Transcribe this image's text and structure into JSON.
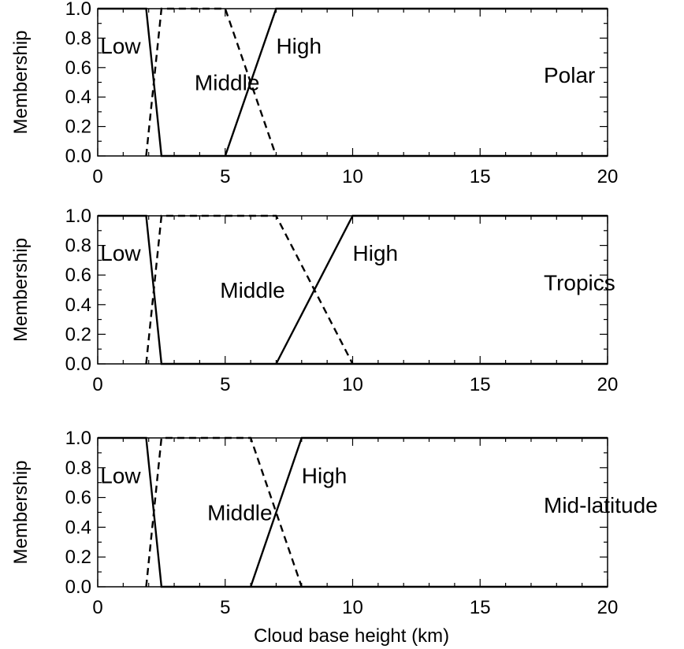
{
  "figure": {
    "xlabel": "Cloud base height (km)"
  },
  "chart_data": [
    {
      "type": "line",
      "region": "Polar",
      "ylabel": "Membership",
      "xlim": [
        0,
        20
      ],
      "ylim": [
        0,
        1
      ],
      "xticks": [
        0,
        5,
        10,
        15,
        20
      ],
      "yticks": [
        0.0,
        0.2,
        0.4,
        0.6,
        0.8,
        1.0
      ],
      "ytick_labels": [
        "0.0",
        "0.2",
        "0.4",
        "0.6",
        "0.8",
        "1.0"
      ],
      "xtick_labels": [
        "0",
        "5",
        "10",
        "15",
        "20"
      ],
      "series": [
        {
          "name": "Low",
          "style": "solid",
          "x": [
            0,
            1.9,
            2.5,
            20
          ],
          "y": [
            1,
            1,
            0,
            0
          ]
        },
        {
          "name": "Middle",
          "style": "dashed",
          "x": [
            1.9,
            2.5,
            5.0,
            7.0
          ],
          "y": [
            0,
            1,
            1,
            0
          ]
        },
        {
          "name": "High",
          "style": "solid",
          "x": [
            5.0,
            7.0,
            20
          ],
          "y": [
            0,
            1,
            1
          ]
        }
      ],
      "label_anchors": {
        "Low": [
          0.1,
          0.75
        ],
        "Middle": [
          3.8,
          0.5
        ],
        "High": [
          7.0,
          0.75
        ]
      }
    },
    {
      "type": "line",
      "region": "Tropics",
      "ylabel": "Membership",
      "xlim": [
        0,
        20
      ],
      "ylim": [
        0,
        1
      ],
      "xticks": [
        0,
        5,
        10,
        15,
        20
      ],
      "yticks": [
        0.0,
        0.2,
        0.4,
        0.6,
        0.8,
        1.0
      ],
      "ytick_labels": [
        "0.0",
        "0.2",
        "0.4",
        "0.6",
        "0.8",
        "1.0"
      ],
      "xtick_labels": [
        "0",
        "5",
        "10",
        "15",
        "20"
      ],
      "series": [
        {
          "name": "Low",
          "style": "solid",
          "x": [
            0,
            1.9,
            2.5,
            20
          ],
          "y": [
            1,
            1,
            0,
            0
          ]
        },
        {
          "name": "Middle",
          "style": "dashed",
          "x": [
            1.9,
            2.5,
            7.0,
            10.0
          ],
          "y": [
            0,
            1,
            1,
            0
          ]
        },
        {
          "name": "High",
          "style": "solid",
          "x": [
            7.0,
            10.0,
            20
          ],
          "y": [
            0,
            1,
            1
          ]
        }
      ],
      "label_anchors": {
        "Low": [
          0.1,
          0.75
        ],
        "Middle": [
          4.8,
          0.5
        ],
        "High": [
          10.0,
          0.75
        ]
      }
    },
    {
      "type": "line",
      "region": "Mid-latitude",
      "ylabel": "Membership",
      "xlim": [
        0,
        20
      ],
      "ylim": [
        0,
        1
      ],
      "xticks": [
        0,
        5,
        10,
        15,
        20
      ],
      "yticks": [
        0.0,
        0.2,
        0.4,
        0.6,
        0.8,
        1.0
      ],
      "ytick_labels": [
        "0.0",
        "0.2",
        "0.4",
        "0.6",
        "0.8",
        "1.0"
      ],
      "xtick_labels": [
        "0",
        "5",
        "10",
        "15",
        "20"
      ],
      "series": [
        {
          "name": "Low",
          "style": "solid",
          "x": [
            0,
            1.9,
            2.5,
            20
          ],
          "y": [
            1,
            1,
            0,
            0
          ]
        },
        {
          "name": "Middle",
          "style": "dashed",
          "x": [
            1.9,
            2.5,
            6.0,
            8.0
          ],
          "y": [
            0,
            1,
            1,
            0
          ]
        },
        {
          "name": "High",
          "style": "solid",
          "x": [
            6.0,
            8.0,
            20
          ],
          "y": [
            0,
            1,
            1
          ]
        }
      ],
      "label_anchors": {
        "Low": [
          0.1,
          0.75
        ],
        "Middle": [
          4.3,
          0.5
        ],
        "High": [
          8.0,
          0.75
        ]
      }
    }
  ]
}
